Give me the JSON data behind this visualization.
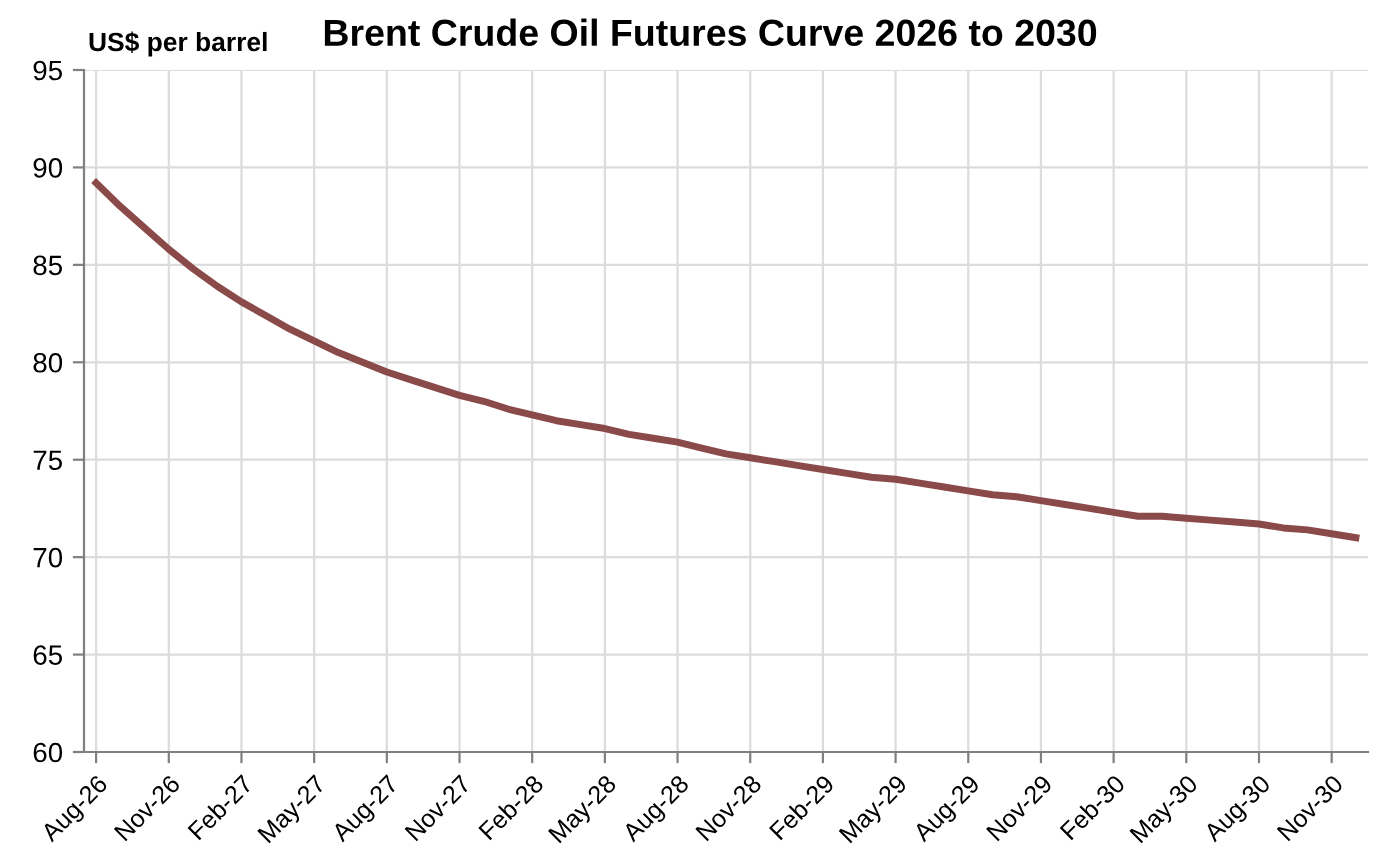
{
  "chart_data": {
    "type": "line",
    "title": "Brent Crude Oil Futures Curve 2026 to 2030",
    "ylabel": "US$ per barrel",
    "categories": [
      "Aug-26",
      null,
      null,
      "Nov-26",
      null,
      null,
      "Feb-27",
      null,
      null,
      "May-27",
      null,
      null,
      "Aug-27",
      null,
      null,
      "Nov-27",
      null,
      null,
      "Feb-28",
      null,
      null,
      "May-28",
      null,
      null,
      "Aug-28",
      null,
      null,
      "Nov-28",
      null,
      null,
      "Feb-29",
      null,
      null,
      "May-29",
      null,
      null,
      "Aug-29",
      null,
      null,
      "Nov-29",
      null,
      null,
      "Feb-30",
      null,
      null,
      "May-30",
      null,
      null,
      "Aug-30",
      null,
      null,
      "Nov-30",
      null
    ],
    "series": [
      {
        "color": "#8b4a4a",
        "values": [
          89.2,
          88.0,
          86.9,
          85.8,
          84.8,
          83.9,
          83.1,
          82.4,
          81.7,
          81.1,
          80.5,
          80.0,
          79.5,
          79.1,
          78.7,
          78.3,
          78.0,
          77.6,
          77.3,
          77.0,
          76.8,
          76.6,
          76.3,
          76.1,
          75.9,
          75.6,
          75.3,
          75.1,
          74.9,
          74.7,
          74.5,
          74.3,
          74.1,
          74.0,
          73.8,
          73.6,
          73.4,
          73.2,
          73.1,
          72.9,
          72.7,
          72.5,
          72.3,
          72.1,
          72.1,
          72.0,
          71.9,
          71.8,
          71.7,
          71.5,
          71.4,
          71.2,
          71.0
        ]
      }
    ],
    "ylim": [
      60,
      95
    ],
    "yticks": [
      60,
      65,
      70,
      75,
      80,
      85,
      90,
      95
    ],
    "grid": true,
    "marker": "none",
    "line_style": "solid"
  }
}
